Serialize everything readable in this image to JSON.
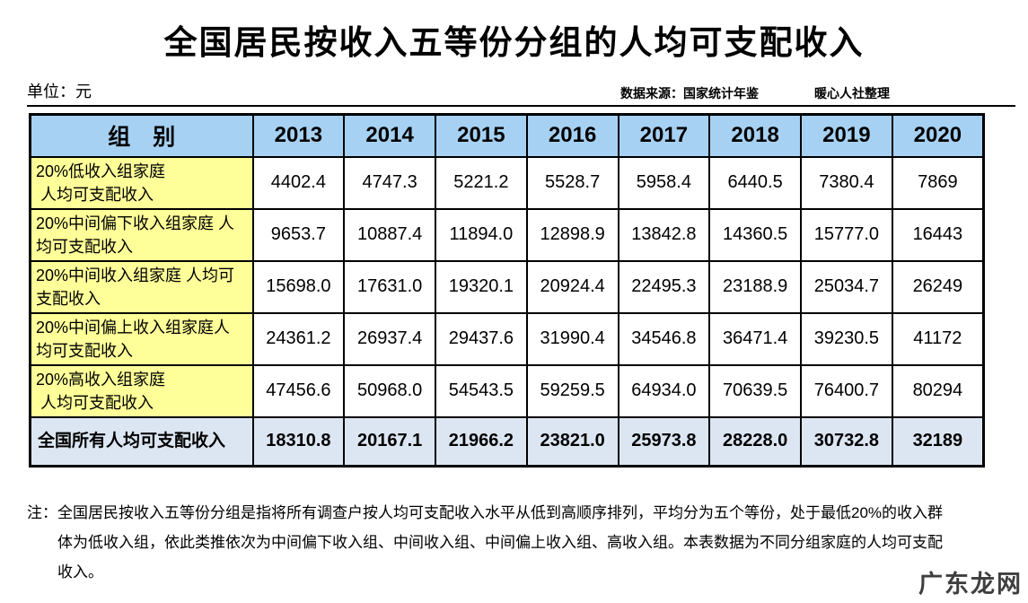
{
  "page": {
    "title": "全国居民按收入五等份分组的人均可支配收入",
    "unit_label": "单位：元",
    "source_label": "数据来源：国家统计年鉴",
    "credit_label": "暖心人社整理",
    "watermark": "广东龙网"
  },
  "colors": {
    "header_bg": "#A6D1F3",
    "row_label_bg": "#FFFF99",
    "total_row_bg": "#DCE6F2",
    "border": "#000000"
  },
  "table": {
    "group_header": "组　别",
    "years": [
      "2013",
      "2014",
      "2015",
      "2016",
      "2017",
      "2018",
      "2019",
      "2020"
    ],
    "rows": [
      {
        "label": "20%低收入组家庭\n 人均可支配收入",
        "values": [
          "4402.4",
          "4747.3",
          "5221.2",
          "5528.7",
          "5958.4",
          "6440.5",
          "7380.4",
          "7869"
        ]
      },
      {
        "label": "20%中间偏下收入组家庭 人\n均可支配收入",
        "values": [
          "9653.7",
          "10887.4",
          "11894.0",
          "12898.9",
          "13842.8",
          "14360.5",
          "15777.0",
          "16443"
        ]
      },
      {
        "label": "20%中间收入组家庭 人均可\n支配收入",
        "values": [
          "15698.0",
          "17631.0",
          "19320.1",
          "20924.4",
          "22495.3",
          "23188.9",
          "25034.7",
          "26249"
        ]
      },
      {
        "label": "20%中间偏上收入组家庭人\n均可支配收入",
        "values": [
          "24361.2",
          "26937.4",
          "29437.6",
          "31990.4",
          "34546.8",
          "36471.4",
          "39230.5",
          "41172"
        ]
      },
      {
        "label": "20%高收入组家庭\n 人均可支配收入",
        "values": [
          "47456.6",
          "50968.0",
          "54543.5",
          "59259.5",
          "64934.0",
          "70639.5",
          "76400.7",
          "80294"
        ]
      }
    ],
    "total": {
      "label": "全国所有人均可支配收入",
      "values": [
        "18310.8",
        "20167.1",
        "21966.2",
        "23821.0",
        "25973.8",
        "28228.0",
        "30732.8",
        "32189"
      ]
    }
  },
  "note": {
    "lines": [
      "注：全国居民按收入五等份分组是指将所有调查户按人均可支配收入水平从低到高顺序排列，平均分为五个等份，处于最低20%的收入群",
      "体为低收入组，依此类推依次为中间偏下收入组、中间收入组、中间偏上收入组、高收入组。本表数据为不同分组家庭的人均可支配",
      "收入。"
    ]
  },
  "chart_data": {
    "type": "table",
    "title": "全国居民按收入五等份分组的人均可支配收入",
    "unit": "元",
    "source": "数据来源：国家统计年鉴",
    "credit": "暖心人社整理",
    "x": [
      "2013",
      "2014",
      "2015",
      "2016",
      "2017",
      "2018",
      "2019",
      "2020"
    ],
    "series": [
      {
        "name": "20%低收入组家庭人均可支配收入",
        "values": [
          4402.4,
          4747.3,
          5221.2,
          5528.7,
          5958.4,
          6440.5,
          7380.4,
          7869
        ]
      },
      {
        "name": "20%中间偏下收入组家庭人均可支配收入",
        "values": [
          9653.7,
          10887.4,
          11894.0,
          12898.9,
          13842.8,
          14360.5,
          15777.0,
          16443
        ]
      },
      {
        "name": "20%中间收入组家庭人均可支配收入",
        "values": [
          15698.0,
          17631.0,
          19320.1,
          20924.4,
          22495.3,
          23188.9,
          25034.7,
          26249
        ]
      },
      {
        "name": "20%中间偏上收入组家庭人均可支配收入",
        "values": [
          24361.2,
          26937.4,
          29437.6,
          31990.4,
          34546.8,
          36471.4,
          39230.5,
          41172
        ]
      },
      {
        "name": "20%高收入组家庭人均可支配收入",
        "values": [
          47456.6,
          50968.0,
          54543.5,
          59259.5,
          64934.0,
          70639.5,
          76400.7,
          80294
        ]
      },
      {
        "name": "全国所有人均可支配收入",
        "values": [
          18310.8,
          20167.1,
          21966.2,
          23821.0,
          25973.8,
          28228.0,
          30732.8,
          32189
        ]
      }
    ]
  }
}
